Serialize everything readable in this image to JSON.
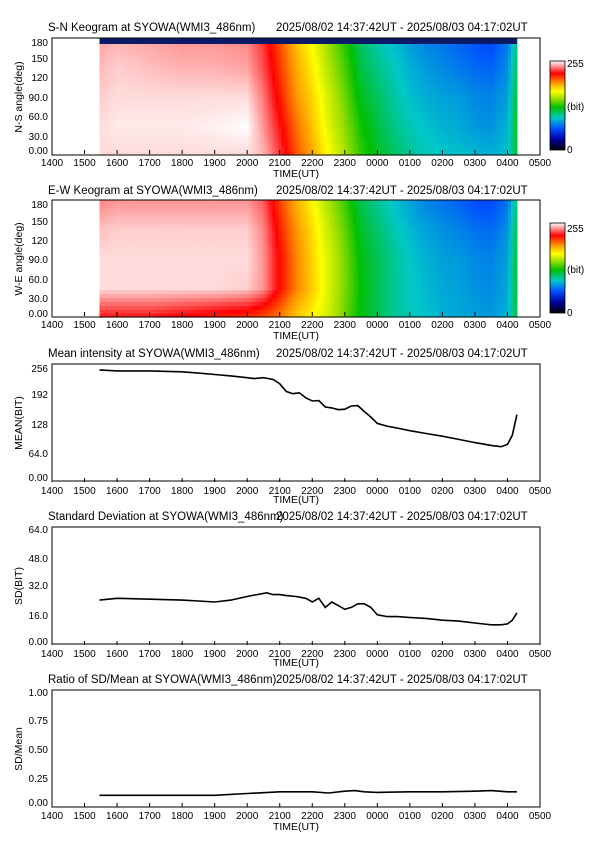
{
  "time_range": "2025/08/02 14:37:42UT - 2025/08/03 04:17:02UT",
  "x_axis": {
    "label": "TIME(UT)",
    "tick_labels": [
      "1400",
      "1500",
      "1600",
      "1700",
      "1800",
      "1900",
      "2000",
      "2100",
      "2200",
      "2300",
      "0000",
      "0100",
      "0200",
      "0300",
      "0400",
      "0500"
    ]
  },
  "colorbar": {
    "min_label": "0",
    "max_label": "255",
    "unit_label": "(bit)"
  },
  "panels": {
    "sn": {
      "title": "S-N Keogram at SYOWA(WMI3_486nm)",
      "ylabel": "N-S angle(deg)",
      "yticks": [
        "180",
        "150",
        "120",
        "90.0",
        "60.0",
        "30.0",
        "0.00"
      ]
    },
    "ew": {
      "title": "E-W Keogram at SYOWA(WMI3_486nm)",
      "ylabel": "W-E angle(deg)",
      "yticks": [
        "180",
        "150",
        "120",
        "90.0",
        "60.0",
        "30.0",
        "0.00"
      ]
    },
    "mean": {
      "title": "Mean intensity at SYOWA(WMI3_486nm)",
      "ylabel": "MEAN(BIT)",
      "yticks": [
        "256",
        "192",
        "128",
        "64.0",
        "0.00"
      ]
    },
    "sd": {
      "title": "Standard Deviation at SYOWA(WMI3_486nm)",
      "ylabel": "SD(BIT)",
      "yticks": [
        "64.0",
        "48.0",
        "32.0",
        "16.0",
        "0.00"
      ]
    },
    "ratio": {
      "title": "Ratio of SD/Mean at SYOWA(WMI3_486nm)",
      "ylabel": "SD/Mean",
      "yticks": [
        "1.00",
        "0.75",
        "0.50",
        "0.25",
        "0.00"
      ]
    }
  },
  "chart_data": [
    {
      "type": "heatmap",
      "title": "S-N Keogram at SYOWA(WMI3_486nm)",
      "xlabel": "TIME(UT)",
      "ylabel": "N-S angle(deg)",
      "x_unit": "hours since 14:00 UT",
      "xlim": [
        0,
        15
      ],
      "ylim": [
        0,
        180
      ],
      "zlim": [
        0,
        255
      ],
      "x": [
        1.46,
        2,
        3,
        4,
        5,
        6,
        6.5,
        7,
        7.5,
        8,
        8.5,
        9,
        9.5,
        10,
        10.5,
        11,
        11.5,
        12,
        12.5,
        13,
        13.5,
        14,
        14.29
      ],
      "y": [
        0,
        45,
        90,
        135,
        180
      ],
      "z": [
        [
          250,
          250,
          250,
          250,
          250,
          250,
          245,
          228,
          205,
          188,
          168,
          150,
          130,
          118,
          108,
          100,
          95,
          92,
          90,
          88,
          86,
          90,
          115
        ],
        [
          250,
          252,
          252,
          252,
          253,
          255,
          240,
          222,
          200,
          182,
          162,
          145,
          125,
          113,
          102,
          95,
          90,
          86,
          84,
          80,
          78,
          86,
          118
        ],
        [
          248,
          250,
          250,
          250,
          250,
          250,
          236,
          215,
          192,
          178,
          158,
          140,
          118,
          108,
          98,
          90,
          85,
          82,
          80,
          76,
          74,
          82,
          115
        ],
        [
          245,
          248,
          246,
          244,
          244,
          242,
          230,
          210,
          188,
          172,
          152,
          134,
          112,
          102,
          94,
          86,
          80,
          76,
          72,
          68,
          66,
          76,
          110
        ],
        [
          242,
          244,
          242,
          240,
          240,
          238,
          226,
          205,
          182,
          166,
          146,
          128,
          106,
          96,
          88,
          80,
          74,
          70,
          66,
          60,
          58,
          70,
          104
        ]
      ]
    },
    {
      "type": "heatmap",
      "title": "E-W Keogram at SYOWA(WMI3_486nm)",
      "xlabel": "TIME(UT)",
      "ylabel": "W-E angle(deg)",
      "x_unit": "hours since 14:00 UT",
      "xlim": [
        0,
        15
      ],
      "ylim": [
        0,
        180
      ],
      "zlim": [
        0,
        255
      ],
      "x": [
        1.46,
        2,
        3,
        4,
        5,
        6,
        6.5,
        7,
        7.5,
        8,
        8.5,
        9,
        9.5,
        10,
        10.5,
        11,
        11.5,
        12,
        12.5,
        13,
        13.5,
        14,
        14.29
      ],
      "y": [
        0,
        45,
        90,
        135,
        180
      ],
      "z": [
        [
          222,
          222,
          222,
          218,
          214,
          210,
          205,
          196,
          180,
          170,
          158,
          140,
          120,
          110,
          100,
          94,
          90,
          86,
          84,
          82,
          80,
          86,
          112
        ],
        [
          250,
          250,
          250,
          250,
          250,
          248,
          240,
          218,
          196,
          180,
          160,
          142,
          122,
          110,
          100,
          93,
          88,
          84,
          82,
          78,
          76,
          84,
          116
        ],
        [
          250,
          250,
          250,
          250,
          250,
          250,
          240,
          218,
          196,
          178,
          160,
          142,
          120,
          110,
          100,
          92,
          86,
          82,
          80,
          76,
          74,
          82,
          115
        ],
        [
          246,
          248,
          248,
          248,
          248,
          248,
          238,
          214,
          192,
          176,
          156,
          138,
          116,
          106,
          96,
          88,
          82,
          78,
          74,
          70,
          68,
          78,
          112
        ],
        [
          238,
          240,
          240,
          240,
          240,
          240,
          232,
          208,
          186,
          170,
          150,
          132,
          110,
          100,
          90,
          82,
          74,
          70,
          66,
          60,
          58,
          70,
          105
        ]
      ]
    },
    {
      "type": "line",
      "title": "Mean intensity at SYOWA(WMI3_486nm)",
      "xlabel": "TIME(UT)",
      "ylabel": "MEAN(BIT)",
      "x_unit": "hours since 14:00 UT",
      "xlim": [
        0,
        15
      ],
      "ylim": [
        0,
        256
      ],
      "x": [
        1.46,
        2,
        3,
        4,
        4.5,
        5,
        5.5,
        6,
        6.2,
        6.5,
        6.8,
        7,
        7.2,
        7.4,
        7.6,
        7.8,
        8,
        8.2,
        8.4,
        8.6,
        8.8,
        9,
        9.2,
        9.4,
        9.6,
        9.8,
        10,
        10.3,
        10.6,
        11,
        11.5,
        12,
        12.5,
        13,
        13.5,
        13.8,
        14,
        14.15,
        14.29
      ],
      "values": [
        243,
        241,
        241,
        239,
        236,
        233,
        230,
        226,
        224,
        226,
        222,
        213,
        196,
        191,
        193,
        182,
        175,
        176,
        162,
        160,
        156,
        157,
        164,
        165,
        152,
        140,
        126,
        120,
        116,
        110,
        104,
        98,
        91,
        84,
        78,
        75,
        80,
        100,
        145
      ]
    },
    {
      "type": "line",
      "title": "Standard Deviation at SYOWA(WMI3_486nm)",
      "xlabel": "TIME(UT)",
      "ylabel": "SD(BIT)",
      "x_unit": "hours since 14:00 UT",
      "xlim": [
        0,
        15
      ],
      "ylim": [
        0,
        64
      ],
      "x": [
        1.46,
        2,
        3,
        4,
        4.5,
        5,
        5.5,
        6,
        6.3,
        6.6,
        6.8,
        7,
        7.2,
        7.5,
        7.8,
        8,
        8.2,
        8.4,
        8.6,
        8.8,
        9,
        9.2,
        9.4,
        9.6,
        9.8,
        10,
        10.3,
        10.6,
        11,
        11.5,
        12,
        12.5,
        13,
        13.5,
        13.8,
        14,
        14.15,
        14.29
      ],
      "values": [
        24,
        25,
        24.5,
        24,
        23.5,
        23,
        24,
        26,
        27,
        28,
        27,
        27,
        26.5,
        26,
        25,
        23,
        25,
        20,
        23,
        21,
        19,
        20,
        22,
        22,
        20,
        16,
        15,
        15,
        14.5,
        14,
        13,
        12.5,
        11.5,
        10.5,
        10.5,
        11,
        13,
        17
      ]
    },
    {
      "type": "line",
      "title": "Ratio of SD/Mean at SYOWA(WMI3_486nm)",
      "xlabel": "TIME(UT)",
      "ylabel": "SD/Mean",
      "x_unit": "hours since 14:00 UT",
      "xlim": [
        0,
        15
      ],
      "ylim": [
        0,
        1
      ],
      "x": [
        1.46,
        2,
        3,
        4,
        5,
        6,
        7,
        8,
        8.5,
        9,
        9.3,
        9.6,
        10,
        11,
        12,
        13,
        13.5,
        14,
        14.29
      ],
      "values": [
        0.1,
        0.1,
        0.1,
        0.1,
        0.1,
        0.115,
        0.13,
        0.13,
        0.12,
        0.135,
        0.14,
        0.13,
        0.125,
        0.13,
        0.13,
        0.135,
        0.14,
        0.13,
        0.13
      ]
    }
  ]
}
